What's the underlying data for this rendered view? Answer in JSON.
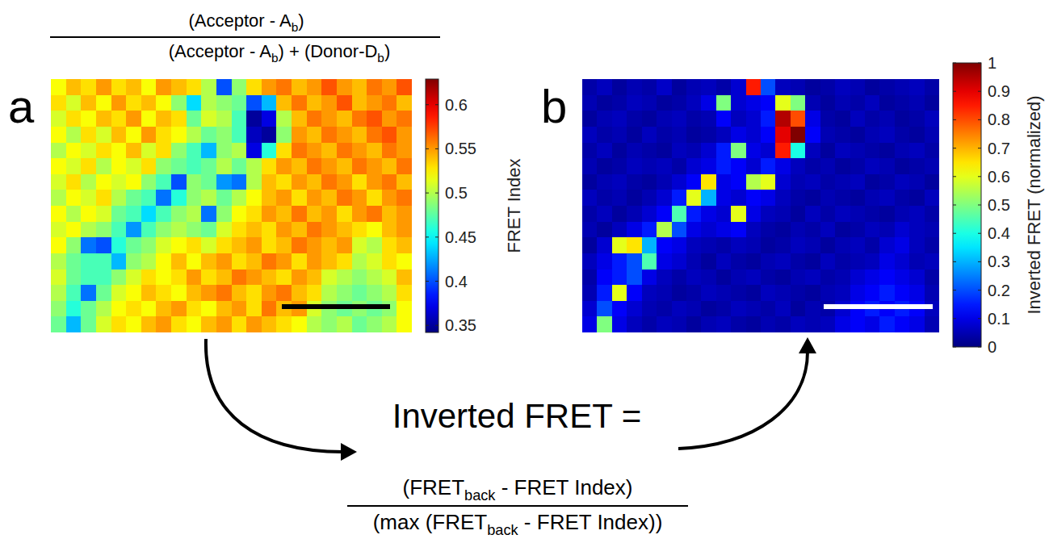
{
  "chart_data": [
    {
      "type": "heatmap",
      "panel": "a",
      "colorbar_label": "FRET Index",
      "zlim": [
        0.342,
        0.629
      ],
      "zticks": [
        0.35,
        0.4,
        0.45,
        0.5,
        0.55,
        0.6
      ],
      "cells": [
        [
          0.52,
          0.54,
          0.53,
          0.55,
          0.53,
          0.54,
          0.52,
          0.55,
          0.54,
          0.53,
          0.5,
          0.4,
          0.49,
          0.53,
          0.55,
          0.56,
          0.54,
          0.55,
          0.57,
          0.55,
          0.54,
          0.56,
          0.55,
          0.57
        ],
        [
          0.53,
          0.51,
          0.54,
          0.52,
          0.55,
          0.53,
          0.54,
          0.52,
          0.49,
          0.44,
          0.5,
          0.49,
          0.48,
          0.4,
          0.43,
          0.54,
          0.56,
          0.54,
          0.55,
          0.57,
          0.54,
          0.55,
          0.56,
          0.54
        ],
        [
          0.51,
          0.53,
          0.52,
          0.54,
          0.53,
          0.55,
          0.52,
          0.54,
          0.53,
          0.48,
          0.51,
          0.5,
          0.47,
          0.35,
          0.37,
          0.5,
          0.54,
          0.56,
          0.55,
          0.54,
          0.56,
          0.57,
          0.55,
          0.56
        ],
        [
          0.52,
          0.5,
          0.53,
          0.51,
          0.54,
          0.52,
          0.55,
          0.53,
          0.52,
          0.5,
          0.48,
          0.49,
          0.47,
          0.36,
          0.35,
          0.49,
          0.55,
          0.54,
          0.56,
          0.55,
          0.54,
          0.56,
          0.57,
          0.55
        ],
        [
          0.5,
          0.52,
          0.51,
          0.53,
          0.52,
          0.54,
          0.51,
          0.53,
          0.49,
          0.47,
          0.43,
          0.49,
          0.5,
          0.37,
          0.46,
          0.53,
          0.56,
          0.55,
          0.54,
          0.56,
          0.55,
          0.54,
          0.56,
          0.55
        ],
        [
          0.52,
          0.51,
          0.53,
          0.5,
          0.52,
          0.51,
          0.53,
          0.49,
          0.48,
          0.47,
          0.48,
          0.5,
          0.48,
          0.5,
          0.53,
          0.55,
          0.54,
          0.56,
          0.55,
          0.54,
          0.56,
          0.55,
          0.54,
          0.56
        ],
        [
          0.51,
          0.53,
          0.5,
          0.52,
          0.51,
          0.52,
          0.49,
          0.47,
          0.4,
          0.49,
          0.48,
          0.42,
          0.41,
          0.5,
          0.54,
          0.53,
          0.55,
          0.54,
          0.56,
          0.55,
          0.53,
          0.55,
          0.56,
          0.54
        ],
        [
          0.5,
          0.52,
          0.51,
          0.53,
          0.5,
          0.48,
          0.47,
          0.41,
          0.46,
          0.49,
          0.5,
          0.48,
          0.5,
          0.52,
          0.54,
          0.55,
          0.53,
          0.55,
          0.54,
          0.56,
          0.55,
          0.53,
          0.55,
          0.56
        ],
        [
          0.52,
          0.5,
          0.52,
          0.51,
          0.48,
          0.47,
          0.44,
          0.47,
          0.49,
          0.5,
          0.41,
          0.49,
          0.52,
          0.53,
          0.55,
          0.54,
          0.56,
          0.54,
          0.55,
          0.53,
          0.55,
          0.56,
          0.54,
          0.55
        ],
        [
          0.51,
          0.52,
          0.5,
          0.49,
          0.47,
          0.42,
          0.47,
          0.49,
          0.5,
          0.49,
          0.48,
          0.51,
          0.53,
          0.54,
          0.53,
          0.55,
          0.54,
          0.56,
          0.55,
          0.54,
          0.53,
          0.52,
          0.54,
          0.55
        ],
        [
          0.52,
          0.49,
          0.41,
          0.4,
          0.46,
          0.48,
          0.49,
          0.51,
          0.52,
          0.53,
          0.51,
          0.53,
          0.54,
          0.55,
          0.53,
          0.54,
          0.56,
          0.55,
          0.54,
          0.55,
          0.51,
          0.5,
          0.53,
          0.54
        ],
        [
          0.5,
          0.48,
          0.47,
          0.47,
          0.43,
          0.49,
          0.5,
          0.52,
          0.54,
          0.52,
          0.54,
          0.55,
          0.53,
          0.54,
          0.56,
          0.55,
          0.53,
          0.55,
          0.54,
          0.53,
          0.5,
          0.51,
          0.53,
          0.52
        ],
        [
          0.51,
          0.48,
          0.47,
          0.47,
          0.49,
          0.51,
          0.53,
          0.52,
          0.53,
          0.55,
          0.53,
          0.54,
          0.56,
          0.55,
          0.54,
          0.53,
          0.55,
          0.54,
          0.51,
          0.5,
          0.49,
          0.5,
          0.51,
          0.54
        ],
        [
          0.5,
          0.47,
          0.41,
          0.48,
          0.51,
          0.52,
          0.54,
          0.53,
          0.52,
          0.54,
          0.55,
          0.56,
          0.54,
          0.53,
          0.55,
          0.56,
          0.54,
          0.53,
          0.5,
          0.49,
          0.48,
          0.49,
          0.5,
          0.53
        ],
        [
          0.49,
          0.46,
          0.48,
          0.5,
          0.52,
          0.53,
          0.52,
          0.54,
          0.55,
          0.53,
          0.52,
          0.54,
          0.55,
          0.53,
          0.56,
          0.54,
          0.55,
          0.51,
          0.49,
          0.48,
          0.49,
          0.48,
          0.49,
          0.52
        ],
        [
          0.48,
          0.43,
          0.48,
          0.51,
          0.53,
          0.52,
          0.54,
          0.55,
          0.53,
          0.52,
          0.54,
          0.55,
          0.53,
          0.55,
          0.54,
          0.53,
          0.52,
          0.5,
          0.49,
          0.5,
          0.48,
          0.49,
          0.5,
          0.52
        ]
      ]
    },
    {
      "type": "heatmap",
      "panel": "b",
      "colorbar_label": "Inverted FRET (normalized)",
      "zlim": [
        0,
        1
      ],
      "zticks": [
        0,
        0.1,
        0.2,
        0.3,
        0.4,
        0.5,
        0.6,
        0.7,
        0.8,
        0.9,
        1
      ],
      "cells": [
        [
          0.04,
          0.06,
          0.03,
          0.05,
          0.04,
          0.07,
          0.03,
          0.05,
          0.06,
          0.04,
          0.08,
          0.85,
          0.2,
          0.06,
          0.05,
          0.03,
          0.04,
          0.06,
          0.05,
          0.03,
          0.04,
          0.05,
          0.06,
          0.04
        ],
        [
          0.05,
          0.03,
          0.04,
          0.06,
          0.05,
          0.03,
          0.04,
          0.06,
          0.1,
          0.5,
          0.08,
          0.1,
          0.12,
          0.6,
          0.5,
          0.05,
          0.03,
          0.05,
          0.04,
          0.06,
          0.03,
          0.04,
          0.05,
          0.03
        ],
        [
          0.03,
          0.05,
          0.06,
          0.04,
          0.03,
          0.05,
          0.06,
          0.04,
          0.05,
          0.12,
          0.06,
          0.08,
          0.15,
          0.95,
          0.8,
          0.1,
          0.04,
          0.03,
          0.06,
          0.04,
          0.05,
          0.03,
          0.04,
          0.06
        ],
        [
          0.06,
          0.04,
          0.05,
          0.03,
          0.06,
          0.04,
          0.05,
          0.03,
          0.04,
          0.06,
          0.1,
          0.08,
          0.12,
          0.9,
          1.0,
          0.12,
          0.05,
          0.04,
          0.03,
          0.05,
          0.06,
          0.04,
          0.03,
          0.05
        ],
        [
          0.04,
          0.06,
          0.03,
          0.05,
          0.04,
          0.03,
          0.06,
          0.05,
          0.08,
          0.15,
          0.5,
          0.1,
          0.08,
          0.85,
          0.4,
          0.06,
          0.03,
          0.06,
          0.05,
          0.04,
          0.03,
          0.05,
          0.06,
          0.04
        ],
        [
          0.05,
          0.03,
          0.04,
          0.06,
          0.05,
          0.06,
          0.04,
          0.08,
          0.1,
          0.15,
          0.12,
          0.08,
          0.15,
          0.1,
          0.06,
          0.04,
          0.05,
          0.03,
          0.04,
          0.06,
          0.05,
          0.03,
          0.04,
          0.05
        ],
        [
          0.03,
          0.05,
          0.06,
          0.04,
          0.03,
          0.05,
          0.08,
          0.12,
          0.65,
          0.1,
          0.12,
          0.55,
          0.6,
          0.08,
          0.05,
          0.06,
          0.04,
          0.05,
          0.06,
          0.03,
          0.04,
          0.06,
          0.05,
          0.03
        ],
        [
          0.06,
          0.04,
          0.05,
          0.03,
          0.05,
          0.08,
          0.15,
          0.6,
          0.3,
          0.1,
          0.08,
          0.12,
          0.1,
          0.06,
          0.04,
          0.03,
          0.05,
          0.04,
          0.03,
          0.05,
          0.06,
          0.04,
          0.03,
          0.06
        ],
        [
          0.04,
          0.06,
          0.03,
          0.05,
          0.08,
          0.12,
          0.45,
          0.15,
          0.1,
          0.08,
          0.6,
          0.1,
          0.06,
          0.05,
          0.03,
          0.06,
          0.04,
          0.06,
          0.05,
          0.04,
          0.03,
          0.05,
          0.06,
          0.04
        ],
        [
          0.05,
          0.03,
          0.06,
          0.1,
          0.15,
          0.55,
          0.2,
          0.1,
          0.08,
          0.1,
          0.12,
          0.06,
          0.04,
          0.03,
          0.05,
          0.04,
          0.06,
          0.03,
          0.04,
          0.06,
          0.05,
          0.08,
          0.06,
          0.05
        ],
        [
          0.03,
          0.08,
          0.6,
          0.65,
          0.3,
          0.12,
          0.1,
          0.06,
          0.05,
          0.04,
          0.06,
          0.05,
          0.03,
          0.04,
          0.06,
          0.05,
          0.03,
          0.05,
          0.06,
          0.04,
          0.08,
          0.1,
          0.06,
          0.04
        ],
        [
          0.06,
          0.1,
          0.15,
          0.2,
          0.45,
          0.1,
          0.08,
          0.05,
          0.03,
          0.06,
          0.04,
          0.03,
          0.05,
          0.06,
          0.04,
          0.03,
          0.06,
          0.04,
          0.05,
          0.06,
          0.1,
          0.08,
          0.05,
          0.06
        ],
        [
          0.04,
          0.12,
          0.15,
          0.2,
          0.1,
          0.06,
          0.04,
          0.06,
          0.05,
          0.03,
          0.05,
          0.06,
          0.04,
          0.03,
          0.05,
          0.06,
          0.04,
          0.05,
          0.08,
          0.1,
          0.12,
          0.1,
          0.08,
          0.04
        ],
        [
          0.05,
          0.15,
          0.6,
          0.12,
          0.06,
          0.05,
          0.03,
          0.04,
          0.06,
          0.05,
          0.04,
          0.03,
          0.06,
          0.05,
          0.04,
          0.03,
          0.05,
          0.06,
          0.1,
          0.12,
          0.15,
          0.12,
          0.1,
          0.05
        ],
        [
          0.08,
          0.2,
          0.12,
          0.08,
          0.05,
          0.04,
          0.06,
          0.05,
          0.03,
          0.04,
          0.06,
          0.05,
          0.04,
          0.06,
          0.03,
          0.05,
          0.04,
          0.08,
          0.12,
          0.15,
          0.12,
          0.15,
          0.12,
          0.06
        ],
        [
          0.1,
          0.5,
          0.1,
          0.06,
          0.04,
          0.06,
          0.05,
          0.03,
          0.05,
          0.06,
          0.04,
          0.03,
          0.05,
          0.04,
          0.06,
          0.05,
          0.06,
          0.1,
          0.12,
          0.1,
          0.15,
          0.12,
          0.1,
          0.05
        ]
      ]
    }
  ],
  "formulas": {
    "fret_index": {
      "numerator": [
        {
          "text": "(Acceptor - A"
        },
        {
          "text": "b",
          "sub": true
        },
        {
          "text": ")"
        }
      ],
      "denominator": [
        {
          "text": "(Acceptor - A"
        },
        {
          "text": "b",
          "sub": true
        },
        {
          "text": ") + (Donor-D"
        },
        {
          "text": "b",
          "sub": true
        },
        {
          "text": ")"
        }
      ]
    },
    "inverted_fret": {
      "lhs": "Inverted FRET =",
      "numerator": [
        {
          "text": "(FRET"
        },
        {
          "text": "back",
          "sub": true
        },
        {
          "text": " - FRET Index)"
        }
      ],
      "denominator": [
        {
          "text": "(max (FRET"
        },
        {
          "text": "back",
          "sub": true
        },
        {
          "text": " - FRET Index))"
        }
      ]
    }
  }
}
